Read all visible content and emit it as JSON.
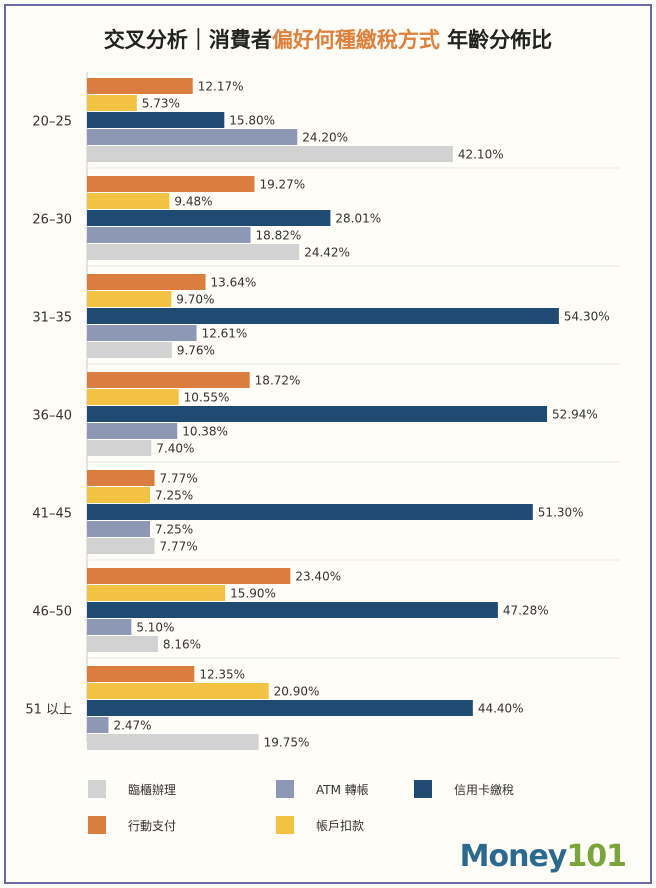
{
  "chart_data": {
    "type": "bar",
    "orientation": "horizontal",
    "title": {
      "prefix": "交叉分析｜消費者",
      "highlight": "偏好何種繳稅方式",
      "suffix": " 年齡分佈比"
    },
    "categories": [
      "20–25",
      "26–30",
      "31–35",
      "36–40",
      "41–45",
      "46–50",
      "51 以上"
    ],
    "series": [
      {
        "name": "行動支付",
        "color": "#db7d3e",
        "values": [
          12.17,
          19.27,
          13.64,
          18.72,
          7.77,
          23.4,
          12.35
        ]
      },
      {
        "name": "帳戶扣款",
        "color": "#f4c243",
        "values": [
          5.73,
          9.48,
          9.7,
          10.55,
          7.25,
          15.9,
          20.9
        ]
      },
      {
        "name": "信用卡繳稅",
        "color": "#1f4a72",
        "values": [
          15.8,
          28.01,
          54.3,
          52.94,
          51.3,
          47.28,
          44.4
        ]
      },
      {
        "name": "ATM 轉帳",
        "color": "#8d99b4",
        "values": [
          24.2,
          18.82,
          12.61,
          10.38,
          7.25,
          5.1,
          2.47
        ]
      },
      {
        "name": "臨櫃辦理",
        "color": "#d2d2d2",
        "values": [
          42.1,
          24.42,
          9.76,
          7.4,
          7.77,
          8.16,
          19.75
        ]
      }
    ],
    "value_suffix": "%",
    "legend_order": [
      "臨櫃辦理",
      "ATM 轉帳",
      "信用卡繳稅",
      "行動支付",
      "帳戶扣款"
    ],
    "legend_placement": "bottom",
    "grid": false
  },
  "logo": {
    "text_a": "Money",
    "text_b": "101"
  }
}
